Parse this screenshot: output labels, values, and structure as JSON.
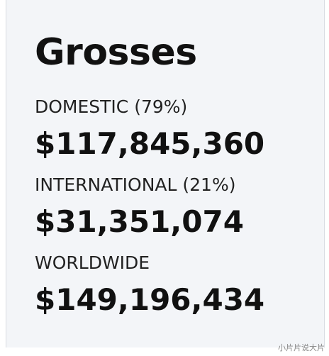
{
  "header": {
    "title": "Grosses"
  },
  "rows": [
    {
      "label": "DOMESTIC (79%)",
      "amount": "$117,845,360"
    },
    {
      "label": "INTERNATIONAL (21%)",
      "amount": "$31,351,074"
    },
    {
      "label": "WORLDWIDE",
      "amount": "$149,196,434"
    }
  ],
  "watermark": "小片片说大片"
}
